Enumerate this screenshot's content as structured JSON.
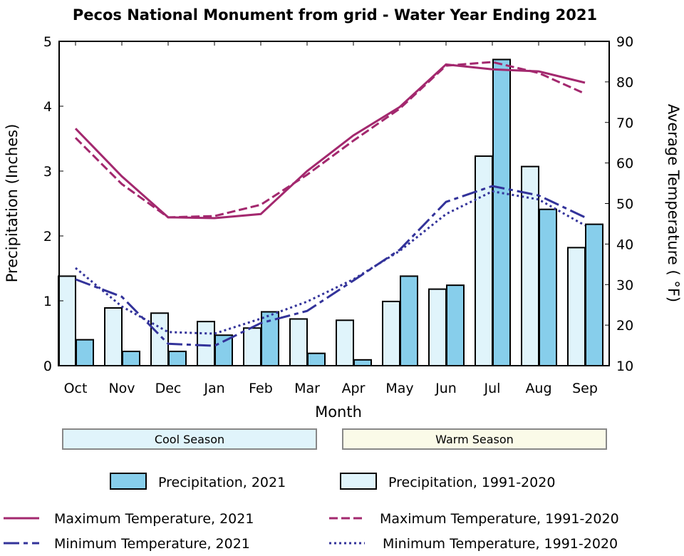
{
  "chart_data": {
    "type": "bar+line",
    "title": "Pecos National Monument from grid - Water Year Ending 2021",
    "xlabel": "Month",
    "ylabel": "Precipitation (Inches)",
    "y2label": "Average Temperature ( °F)",
    "ylim": [
      0,
      5
    ],
    "y2lim": [
      10,
      90
    ],
    "yticks": [
      "0",
      "1",
      "2",
      "3",
      "4",
      "5"
    ],
    "y2ticks": [
      "10",
      "20",
      "30",
      "40",
      "50",
      "60",
      "70",
      "80",
      "90"
    ],
    "categories": [
      "Oct",
      "Nov",
      "Dec",
      "Jan",
      "Feb",
      "Mar",
      "Apr",
      "May",
      "Jun",
      "Jul",
      "Aug",
      "Sep"
    ],
    "bars": [
      {
        "name": "Precipitation, 2021",
        "color": "#87ceeb",
        "values": [
          0.4,
          0.22,
          0.22,
          0.47,
          0.83,
          0.19,
          0.09,
          1.38,
          1.24,
          4.72,
          2.41,
          2.18
        ]
      },
      {
        "name": "Precipitation, 1991-2020",
        "color": "#e0f4fb",
        "values": [
          1.38,
          0.89,
          0.81,
          0.68,
          0.58,
          0.72,
          0.7,
          0.99,
          1.18,
          3.23,
          3.07,
          1.82
        ]
      }
    ],
    "lines": [
      {
        "name": "Maximum Temperature, 2021",
        "color": "#a3286e",
        "dash": "solid",
        "values": [
          68.5,
          56.7,
          46.6,
          46.4,
          47.4,
          58.0,
          66.8,
          73.8,
          84.3,
          83.1,
          82.6,
          79.8
        ]
      },
      {
        "name": "Maximum Temperature, 1991-2020",
        "color": "#a3286e",
        "dash": "dashed",
        "values": [
          66.2,
          54.8,
          46.6,
          46.9,
          49.7,
          57.1,
          65.5,
          73.4,
          84.0,
          84.9,
          82.2,
          77.1
        ]
      },
      {
        "name": "Minimum Temperature, 2021",
        "color": "#33339a",
        "dash": "longdash",
        "values": [
          31.3,
          27.0,
          15.4,
          14.9,
          20.5,
          23.5,
          31.0,
          38.6,
          50.4,
          54.3,
          52.0,
          46.6
        ]
      },
      {
        "name": "Minimum Temperature, 1991-2020",
        "color": "#33339a",
        "dash": "dotted",
        "values": [
          34.1,
          24.6,
          18.3,
          17.9,
          21.6,
          25.8,
          31.3,
          38.3,
          47.4,
          53.0,
          51.0,
          44.6
        ]
      }
    ],
    "seasons": {
      "cool": "Cool Season",
      "warm": "Warm Season",
      "cool_color": "#e0f4fb",
      "warm_color": "#fafae8"
    },
    "legend_placement": "bottom"
  }
}
